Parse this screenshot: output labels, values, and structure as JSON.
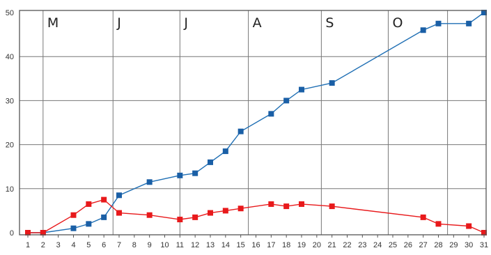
{
  "chart_data": {
    "type": "line",
    "title": "",
    "xlabel": "",
    "ylabel": "",
    "xlim": [
      1,
      31
    ],
    "ylim": [
      0,
      50
    ],
    "grid": true,
    "x_ticks": [
      1,
      2,
      3,
      4,
      5,
      6,
      7,
      8,
      9,
      10,
      11,
      12,
      13,
      14,
      15,
      16,
      17,
      18,
      19,
      20,
      21,
      22,
      23,
      24,
      25,
      26,
      27,
      28,
      29,
      30,
      31
    ],
    "y_ticks": [
      0,
      10,
      20,
      30,
      40,
      50
    ],
    "months": [
      {
        "label": "M",
        "x": 2
      },
      {
        "label": "J",
        "x": 6.6
      },
      {
        "label": "J",
        "x": 11
      },
      {
        "label": "A",
        "x": 15.5
      },
      {
        "label": "S",
        "x": 20.3
      },
      {
        "label": "O",
        "x": 24.7
      }
    ],
    "month_boundaries": [
      2,
      6.6,
      11,
      15.5,
      20.3,
      24.7,
      28.6
    ],
    "series": [
      {
        "color": "#1f6fb4",
        "marker_color": "#1a5fa6",
        "x": [
          1,
          2,
          4,
          5,
          6,
          7,
          9,
          11,
          12,
          13,
          14,
          15,
          17,
          18,
          19,
          21,
          27,
          28,
          30,
          31
        ],
        "values": [
          0,
          0,
          1,
          2,
          3.5,
          8.5,
          11.5,
          13,
          13.5,
          16,
          18.5,
          23,
          27,
          30,
          32.5,
          34,
          46,
          47.5,
          47.5,
          50
        ]
      },
      {
        "color": "#e8191b",
        "marker_color": "#e8191b",
        "x": [
          1,
          2,
          4,
          5,
          6,
          7,
          9,
          11,
          12,
          13,
          14,
          15,
          17,
          18,
          19,
          21,
          27,
          28,
          30,
          31
        ],
        "values": [
          0,
          0,
          4,
          6.5,
          7.5,
          4.5,
          4,
          3,
          3.5,
          4.5,
          5,
          5.5,
          6.5,
          6,
          6.5,
          6,
          3.5,
          2,
          1.5,
          0
        ]
      }
    ]
  }
}
